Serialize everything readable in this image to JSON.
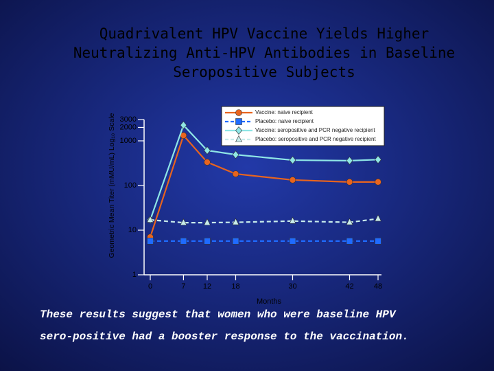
{
  "chart_data": {
    "type": "line",
    "title": [
      "Quadrivalent HPV Vaccine Yields Higher",
      "Neutralizing Anti-HPV Antibodies in Baseline",
      "Seropositive Subjects"
    ],
    "y_label": "Geometric Mean Titer (mMU/mL) Log₁₀ Scale",
    "x_label": "Months",
    "x": [
      0,
      7,
      12,
      18,
      30,
      42,
      48
    ],
    "xlim": [
      0,
      48
    ],
    "xticks": [
      0,
      7,
      12,
      18,
      30,
      42,
      48
    ],
    "ylim": [
      1,
      3000
    ],
    "yticks": [
      1,
      10,
      100,
      1000,
      2000,
      3000
    ],
    "log_y": true,
    "series": [
      {
        "name": "Vaccine: naive recipient",
        "color": "#e8641e",
        "marker": "circle",
        "dash": false,
        "values": [
          7,
          1320,
          333,
          182,
          133,
          120,
          120
        ]
      },
      {
        "name": "Placebo: naive recipient",
        "color": "#1f6bff",
        "marker": "square",
        "dash": true,
        "values": [
          5.7,
          5.7,
          5.7,
          5.7,
          5.7,
          5.7,
          5.7
        ]
      },
      {
        "name": "Vaccine: seropositive and PCR negative recipient",
        "color": "#8fe6e6",
        "marker": "diamond",
        "dash": false,
        "values": [
          17,
          2240,
          610,
          490,
          370,
          360,
          380
        ]
      },
      {
        "name": "Placebo: seropositive and PCR negative recipient",
        "color": "#c8ecec",
        "marker": "triangle",
        "dash": true,
        "values": [
          17,
          14.7,
          14.7,
          15,
          16,
          15,
          18
        ]
      }
    ]
  },
  "caption": [
    "These results suggest that women who were baseline HPV",
    "sero-positive had a booster response to the vaccination."
  ]
}
